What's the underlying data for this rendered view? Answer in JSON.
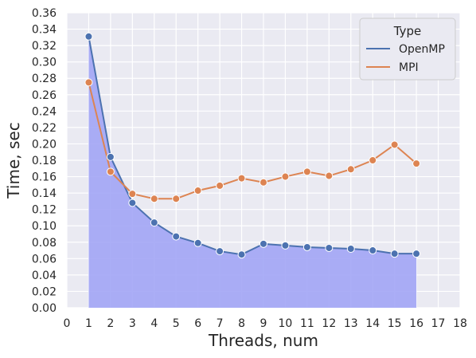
{
  "chart_data": {
    "type": "line",
    "xlabel": "Threads, num",
    "ylabel": "Time, sec",
    "xlim": [
      0,
      18
    ],
    "ylim": [
      0,
      0.36
    ],
    "xticks": [
      "0",
      "1",
      "2",
      "3",
      "4",
      "5",
      "6",
      "7",
      "8",
      "9",
      "10",
      "11",
      "12",
      "13",
      "14",
      "15",
      "16",
      "17",
      "18"
    ],
    "yticks": [
      "0.00",
      "0.02",
      "0.04",
      "0.06",
      "0.08",
      "0.10",
      "0.12",
      "0.14",
      "0.16",
      "0.18",
      "0.20",
      "0.22",
      "0.24",
      "0.26",
      "0.28",
      "0.30",
      "0.32",
      "0.34",
      "0.36"
    ],
    "grid": true,
    "legend": {
      "title": "Type",
      "placement": "top-right"
    },
    "x": [
      1,
      2,
      3,
      4,
      5,
      6,
      7,
      8,
      9,
      10,
      11,
      12,
      13,
      14,
      15,
      16
    ],
    "series": [
      {
        "name": "OpenMP",
        "color": "#4c72b0",
        "filled": true,
        "fill_color": "#a2a5f5",
        "values": [
          0.331,
          0.184,
          0.128,
          0.104,
          0.087,
          0.079,
          0.069,
          0.065,
          0.078,
          0.076,
          0.074,
          0.073,
          0.072,
          0.07,
          0.066,
          0.066
        ]
      },
      {
        "name": "MPI",
        "color": "#dd8452",
        "filled": false,
        "values": [
          0.275,
          0.166,
          0.139,
          0.133,
          0.133,
          0.143,
          0.149,
          0.158,
          0.153,
          0.16,
          0.166,
          0.161,
          0.169,
          0.18,
          0.199,
          0.176
        ]
      }
    ]
  }
}
